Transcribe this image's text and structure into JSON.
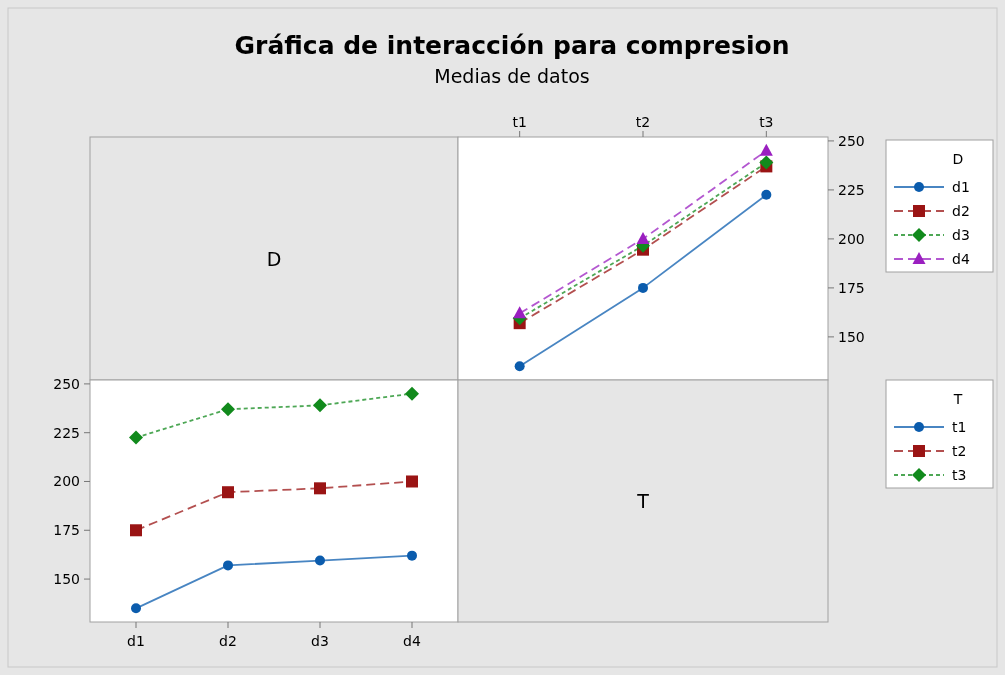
{
  "chart_data": [
    {
      "type": "other",
      "title": "Gráfica de interacción para compresion",
      "subtitle": "Medias de datos",
      "annotations": [
        "D"
      ]
    },
    {
      "type": "line",
      "categories": [
        "t1",
        "t2",
        "t3"
      ],
      "ylim": [
        128,
        252
      ],
      "yticks": [
        150,
        175,
        200,
        225,
        250
      ],
      "legend": "right",
      "legend_title": "D",
      "series": [
        {
          "name": "d1",
          "color": "#0b5cad",
          "marker": "circle",
          "line_style": "solid",
          "values": [
            135,
            175,
            222.5
          ]
        },
        {
          "name": "d2",
          "color": "#9a1414",
          "marker": "square",
          "line_style": "dashed",
          "values": [
            157,
            194.5,
            237
          ]
        },
        {
          "name": "d3",
          "color": "#118a1c",
          "marker": "diamond",
          "line_style": "dotted",
          "values": [
            159.5,
            196.5,
            239
          ]
        },
        {
          "name": "d4",
          "color": "#9a1fc0",
          "marker": "triangle",
          "line_style": "dashed",
          "values": [
            162,
            200,
            245
          ]
        }
      ]
    },
    {
      "type": "line",
      "categories": [
        "d1",
        "d2",
        "d3",
        "d4"
      ],
      "ylim": [
        128,
        252
      ],
      "yticks": [
        150,
        175,
        200,
        225,
        250
      ],
      "legend": "right",
      "legend_title": "T",
      "series": [
        {
          "name": "t1",
          "color": "#0b5cad",
          "marker": "circle",
          "line_style": "solid",
          "values": [
            135,
            157,
            159.5,
            162
          ]
        },
        {
          "name": "t2",
          "color": "#9a1414",
          "marker": "square",
          "line_style": "dashed",
          "values": [
            175,
            194.5,
            196.5,
            200
          ]
        },
        {
          "name": "t3",
          "color": "#118a1c",
          "marker": "diamond",
          "line_style": "dotted",
          "values": [
            222.5,
            237,
            239,
            245
          ]
        }
      ]
    },
    {
      "type": "other",
      "annotations": [
        "T"
      ]
    }
  ]
}
